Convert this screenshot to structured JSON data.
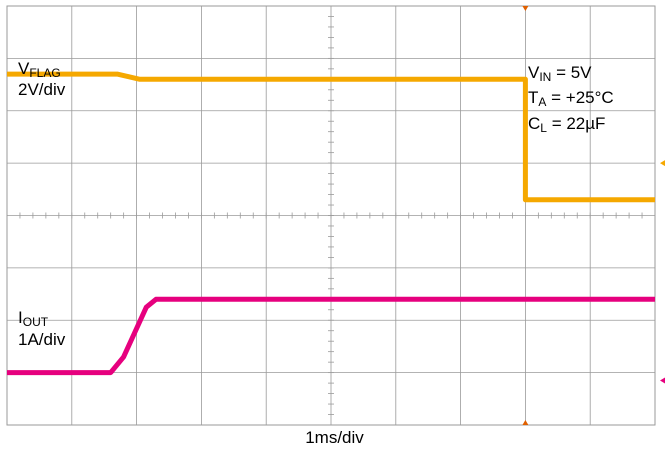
{
  "chart_data": {
    "type": "line",
    "instrument": "oscilloscope",
    "time_per_division": "1ms/div",
    "divisions": {
      "horizontal": 10,
      "vertical": 8
    },
    "grid": true,
    "series": [
      {
        "name": "VFLAG",
        "label_main": "V",
        "label_sub": "FLAG",
        "scale": "2V/div",
        "color": "#f5a800",
        "points_div": [
          [
            0,
            6.7
          ],
          [
            1.7,
            6.7
          ],
          [
            2.05,
            6.6
          ],
          [
            4.0,
            6.6
          ],
          [
            8.0,
            6.6
          ],
          [
            8.0,
            4.3
          ],
          [
            10,
            4.3
          ]
        ]
      },
      {
        "name": "IOUT",
        "label_main": "I",
        "label_sub": "OUT",
        "scale": "1A/div",
        "color": "#e6007e",
        "points_div": [
          [
            0,
            1.0
          ],
          [
            1.6,
            1.0
          ],
          [
            1.8,
            1.3
          ],
          [
            2.15,
            2.25
          ],
          [
            2.3,
            2.4
          ],
          [
            5.0,
            2.4
          ],
          [
            10,
            2.4
          ]
        ]
      }
    ],
    "conditions": [
      {
        "main": "V",
        "sub": "IN",
        "rest": " = 5V"
      },
      {
        "main": "T",
        "sub": "A",
        "rest": " = +25°C"
      },
      {
        "main": "C",
        "sub": "L",
        "rest": " = 22µF"
      }
    ]
  },
  "labels": {
    "vflag_main": "V",
    "vflag_sub": "FLAG",
    "vflag_scale": "2V/div",
    "iout_main": "I",
    "iout_sub": "OUT",
    "iout_scale": "1A/div",
    "vin_main": "V",
    "vin_sub": "IN",
    "vin_rest": " = 5V",
    "ta_main": "T",
    "ta_sub": "A",
    "ta_rest": " = +25°C",
    "cl_main": "C",
    "cl_sub": "L",
    "cl_rest": " = 22µF",
    "xscale": "1ms/div"
  },
  "colors": {
    "grid": "#9a9a9a",
    "vflag": "#f5a800",
    "iout": "#e6007e"
  }
}
